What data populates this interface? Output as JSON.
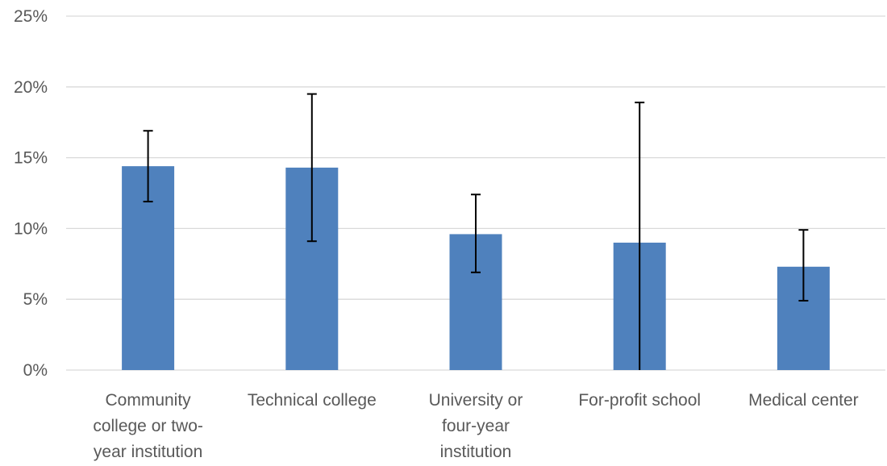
{
  "chart_data": {
    "type": "bar",
    "title": "",
    "xlabel": "",
    "ylabel": "",
    "ylim": [
      0,
      25
    ],
    "y_tick_step": 5,
    "y_tick_format": "percent",
    "y_ticks": [
      "0%",
      "5%",
      "10%",
      "15%",
      "20%",
      "25%"
    ],
    "grid": true,
    "legend": "none",
    "bar_color": "#4f81bd",
    "categories": [
      [
        "Community",
        "college or two-",
        "year institution"
      ],
      [
        "Technical college"
      ],
      [
        "University or",
        "four-year",
        "institution"
      ],
      [
        "For-profit school"
      ],
      [
        "Medical center"
      ]
    ],
    "values": [
      14.4,
      14.3,
      9.6,
      9.0,
      7.3
    ],
    "error_low": [
      11.9,
      9.1,
      6.9,
      0.0,
      4.9
    ],
    "error_high": [
      16.9,
      19.5,
      12.4,
      18.9,
      9.9
    ]
  }
}
